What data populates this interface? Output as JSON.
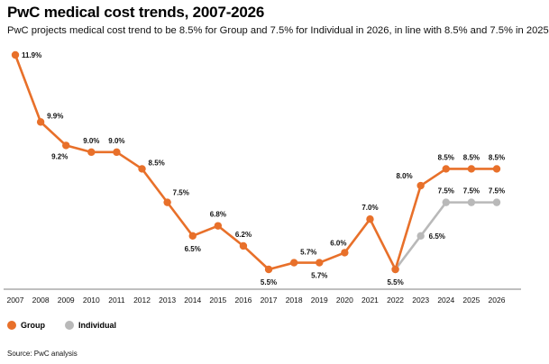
{
  "title": "PwC medical cost trends, 2007-2026",
  "subtitle": "PwC projects medical cost trend to be 8.5% for Group and 7.5% for Individual in 2026, in line with 8.5% and 7.5% in 2025",
  "source": "Source: PwC analysis",
  "colors": {
    "group": "#e8702a",
    "individual": "#b9b9b9",
    "axis": "#555555",
    "grid": "#dddddd"
  },
  "chart_data": {
    "type": "line",
    "title": "PwC medical cost trends, 2007-2026",
    "xlabel": "",
    "ylabel": "",
    "categories": [
      "2007",
      "2008",
      "2009",
      "2010",
      "2011",
      "2012",
      "2013",
      "2014",
      "2015",
      "2016",
      "2017",
      "2018",
      "2019",
      "2020",
      "2021",
      "2022",
      "2023",
      "2024",
      "2025",
      "2026"
    ],
    "ylim": [
      5.5,
      11.9
    ],
    "grid": false,
    "legend": "bottom-left",
    "series": [
      {
        "name": "Group",
        "x": [
          "2007",
          "2008",
          "2009",
          "2010",
          "2011",
          "2012",
          "2013",
          "2014",
          "2015",
          "2016",
          "2017",
          "2018",
          "2019",
          "2020",
          "2021",
          "2022",
          "2023",
          "2024",
          "2025",
          "2026"
        ],
        "values": [
          11.9,
          9.9,
          9.2,
          9.0,
          9.0,
          8.5,
          7.5,
          6.5,
          6.8,
          6.2,
          5.5,
          5.7,
          5.7,
          6.0,
          7.0,
          5.5,
          8.0,
          8.5,
          8.5,
          8.5
        ],
        "labels": [
          "11.9%",
          "9.9%",
          "9.2%",
          "9.0%",
          "9.0%",
          "8.5%",
          "7.5%",
          "6.5%",
          "6.8%",
          "6.2%",
          "5.5%",
          "5.7%",
          "5.7%",
          "6.0%",
          "7.0%",
          "5.5%",
          "8.0%",
          "8.5%",
          "8.5%",
          "8.5%"
        ]
      },
      {
        "name": "Individual",
        "x": [
          "2022",
          "2023",
          "2024",
          "2025",
          "2026"
        ],
        "values": [
          5.5,
          6.5,
          7.5,
          7.5,
          7.5
        ],
        "labels": [
          "",
          "6.5%",
          "7.5%",
          "7.5%",
          "7.5%"
        ]
      }
    ]
  },
  "legend": {
    "group_label": "Group",
    "individual_label": "Individual"
  }
}
